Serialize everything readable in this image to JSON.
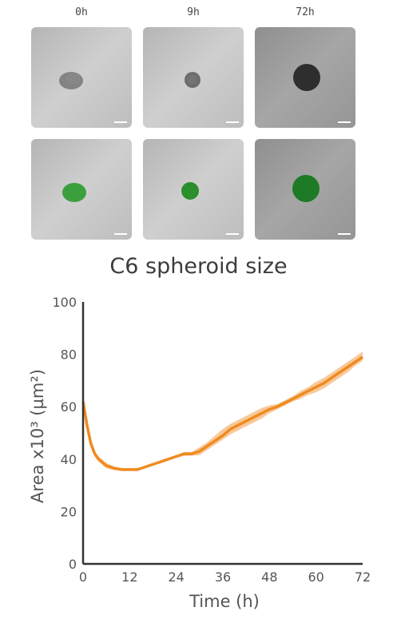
{
  "panel": {
    "timepoints": [
      "0h",
      "9h",
      "72h"
    ],
    "rows": [
      "brightfield",
      "green-fluorescence-overlay"
    ]
  },
  "colors": {
    "line": "#F08A1E",
    "band": "#F6C08A",
    "tile_bg_light": "#c9c9c9",
    "tile_bg_dark": "#9a9a9a",
    "spheroid_green": "#1f8a2a",
    "axis": "#333333"
  },
  "chart_data": {
    "type": "line",
    "title": "C6 spheroid size",
    "xlabel": "Time (h)",
    "ylabel": "Area x10³ (µm²)",
    "xlim": [
      0,
      72
    ],
    "ylim": [
      0,
      100
    ],
    "x_ticks": [
      0,
      12,
      24,
      36,
      48,
      60,
      72
    ],
    "y_ticks": [
      0,
      20,
      40,
      60,
      80,
      100
    ],
    "grid": false,
    "series": [
      {
        "x": [
          0,
          1,
          2,
          3,
          4,
          6,
          8,
          10,
          12,
          14,
          16,
          18,
          20,
          22,
          24,
          26,
          28,
          30,
          32,
          34,
          36,
          38,
          40,
          42,
          44,
          46,
          48,
          50,
          52,
          54,
          56,
          58,
          60,
          62,
          64,
          66,
          68,
          70,
          72
        ],
        "mean": [
          62,
          53,
          46,
          42,
          40,
          37.5,
          36.5,
          36,
          36,
          36,
          37,
          38,
          39,
          40,
          41,
          42,
          42,
          43,
          45,
          47,
          49,
          51.5,
          53,
          54.5,
          56,
          57.5,
          59,
          60,
          61.5,
          63,
          64.5,
          66,
          67.5,
          69,
          71,
          73,
          75,
          77,
          79
        ],
        "lower": [
          61,
          52,
          44.5,
          41,
          39,
          36.5,
          35.8,
          35.5,
          35.5,
          35.5,
          36.5,
          37.5,
          38.5,
          39.5,
          40.5,
          41.3,
          41.3,
          41.5,
          43.5,
          45.5,
          47.5,
          49.5,
          51,
          52.5,
          54,
          55.5,
          57.5,
          59,
          60.5,
          62,
          63,
          64.5,
          65.5,
          67,
          69,
          71,
          73,
          75.5,
          77.5
        ],
        "upper": [
          63,
          54,
          47.5,
          43,
          41,
          38.5,
          37.2,
          36.5,
          36.5,
          36.5,
          37.5,
          38.5,
          39.5,
          40.5,
          41.5,
          42.7,
          42.7,
          44.5,
          46.5,
          49,
          51.5,
          53.5,
          55,
          56.5,
          58,
          59.5,
          60.5,
          61,
          62.5,
          64,
          66,
          67.5,
          69.5,
          71,
          73,
          75,
          77,
          79,
          81
        ]
      }
    ]
  }
}
